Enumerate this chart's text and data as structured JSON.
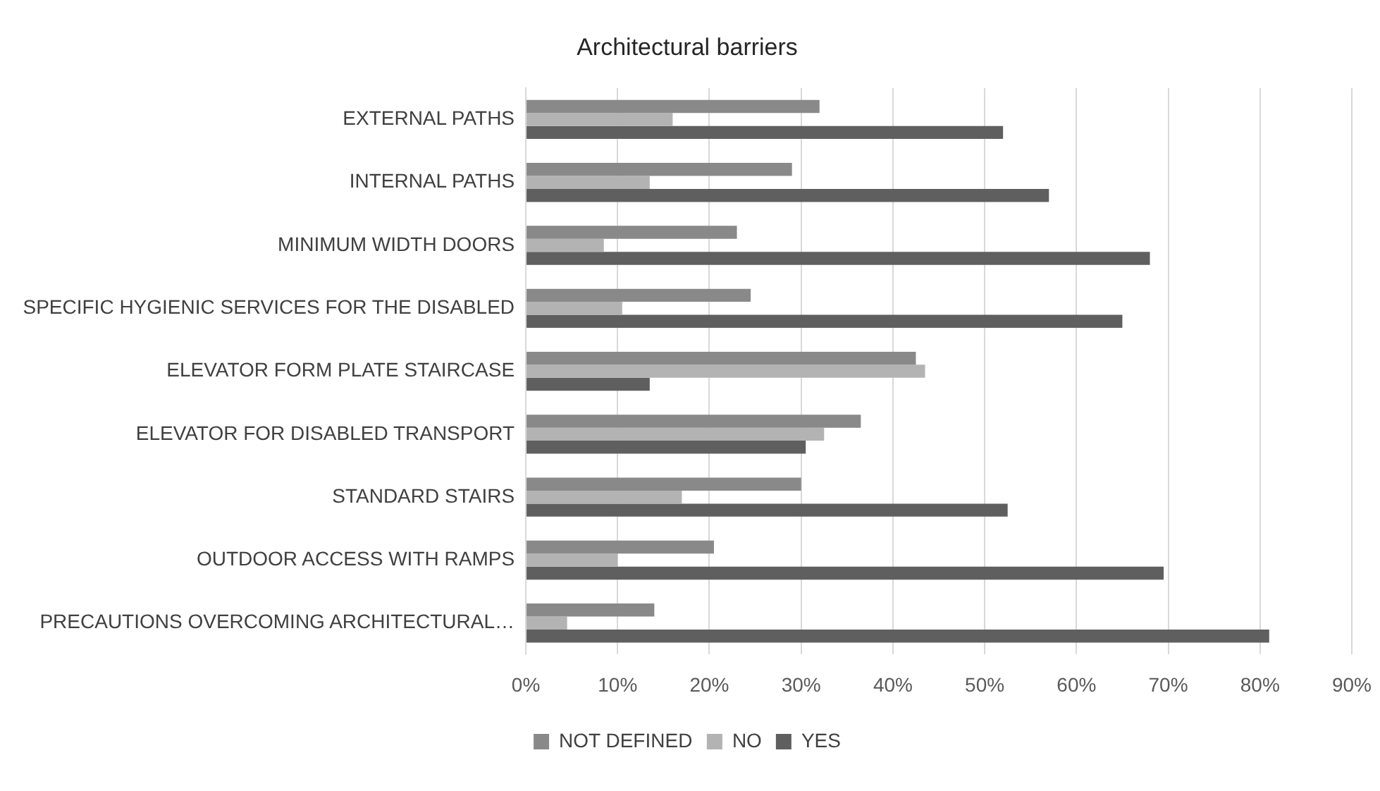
{
  "chart_data": {
    "type": "bar",
    "title": "Architectural barriers",
    "orientation": "horizontal",
    "categories": [
      "EXTERNAL PATHS",
      "INTERNAL PATHS",
      "MINIMUM WIDTH DOORS",
      "SPECIFIC HYGIENIC SERVICES FOR THE DISABLED",
      "ELEVATOR FORM PLATE STAIRCASE",
      "ELEVATOR FOR DISABLED TRANSPORT",
      "STANDARD STAIRS",
      "OUTDOOR ACCESS WITH RAMPS",
      "PRECAUTIONS OVERCOMING ARCHITECTURAL…"
    ],
    "series": [
      {
        "name": "NOT DEFINED",
        "color": "#898989",
        "values": [
          32,
          29,
          23,
          24.5,
          42.5,
          36.5,
          30,
          20.5,
          14
        ]
      },
      {
        "name": "NO",
        "color": "#b3b3b3",
        "values": [
          16,
          13.5,
          8.5,
          10.5,
          43.5,
          32.5,
          17,
          10,
          4.5
        ]
      },
      {
        "name": "YES",
        "color": "#5f5f5f",
        "values": [
          52,
          57,
          68,
          65,
          13.5,
          30.5,
          52.5,
          69.5,
          81
        ]
      }
    ],
    "xlim": [
      0,
      90
    ],
    "xticks": [
      {
        "value": 0,
        "label": "0%"
      },
      {
        "value": 10,
        "label": "10%"
      },
      {
        "value": 20,
        "label": "20%"
      },
      {
        "value": 30,
        "label": "30%"
      },
      {
        "value": 40,
        "label": "40%"
      },
      {
        "value": 50,
        "label": "50%"
      },
      {
        "value": 60,
        "label": "60%"
      },
      {
        "value": 70,
        "label": "70%"
      },
      {
        "value": 80,
        "label": "80%"
      },
      {
        "value": 90,
        "label": "90%"
      }
    ],
    "grid": "x",
    "legend": "bottom"
  }
}
